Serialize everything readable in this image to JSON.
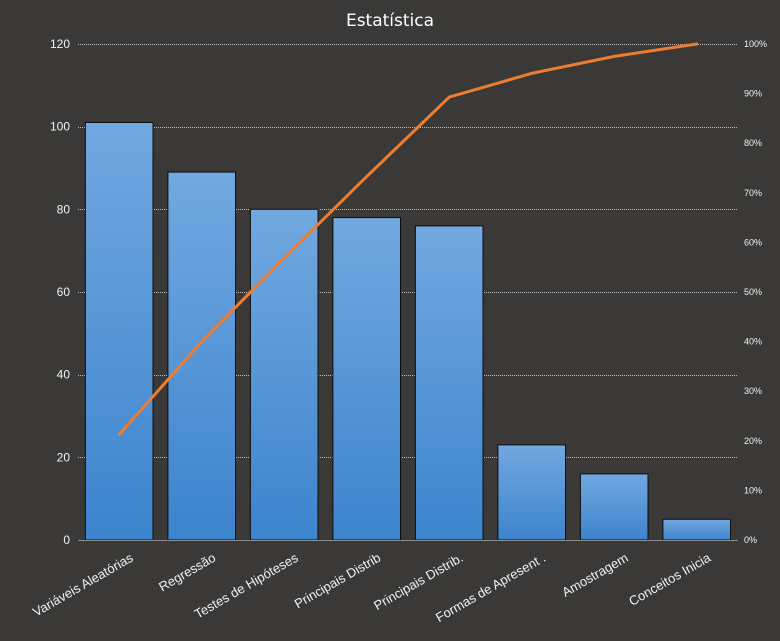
{
  "chart_data": {
    "type": "bar",
    "title": "Estatística",
    "categories": [
      "Variáveis Aleatórias",
      "Regressão",
      "Testes de Hipóteses",
      "Principais Distrib",
      "Principais Distrib.",
      "Formas  de Apresent .",
      "Amostragem",
      "Conceitos Inicia"
    ],
    "series": [
      {
        "values": [
          101,
          89,
          80,
          78,
          76,
          23,
          16,
          5
        ]
      },
      {
        "type": "line",
        "axis": "right",
        "values": [
          21.3,
          40.0,
          56.9,
          73.3,
          89.3,
          94.1,
          97.5,
          100.0
        ]
      }
    ],
    "ylim": [
      0,
      120
    ],
    "yticks": [
      "0",
      "20",
      "40",
      "60",
      "80",
      "100",
      "120"
    ],
    "y2lim": [
      0,
      100
    ],
    "y2ticks": [
      "0%",
      "10%",
      "20%",
      "30%",
      "40%",
      "50%",
      "60%",
      "70%",
      "80%",
      "90%",
      "100%"
    ],
    "grid": true,
    "legend": "none",
    "colors": {
      "background": "#3a3937",
      "bar_top": "#72a8e0",
      "bar_bottom": "#3c84cd",
      "bar_edge": "#0d0d0d",
      "line": "#ed7d31"
    }
  }
}
